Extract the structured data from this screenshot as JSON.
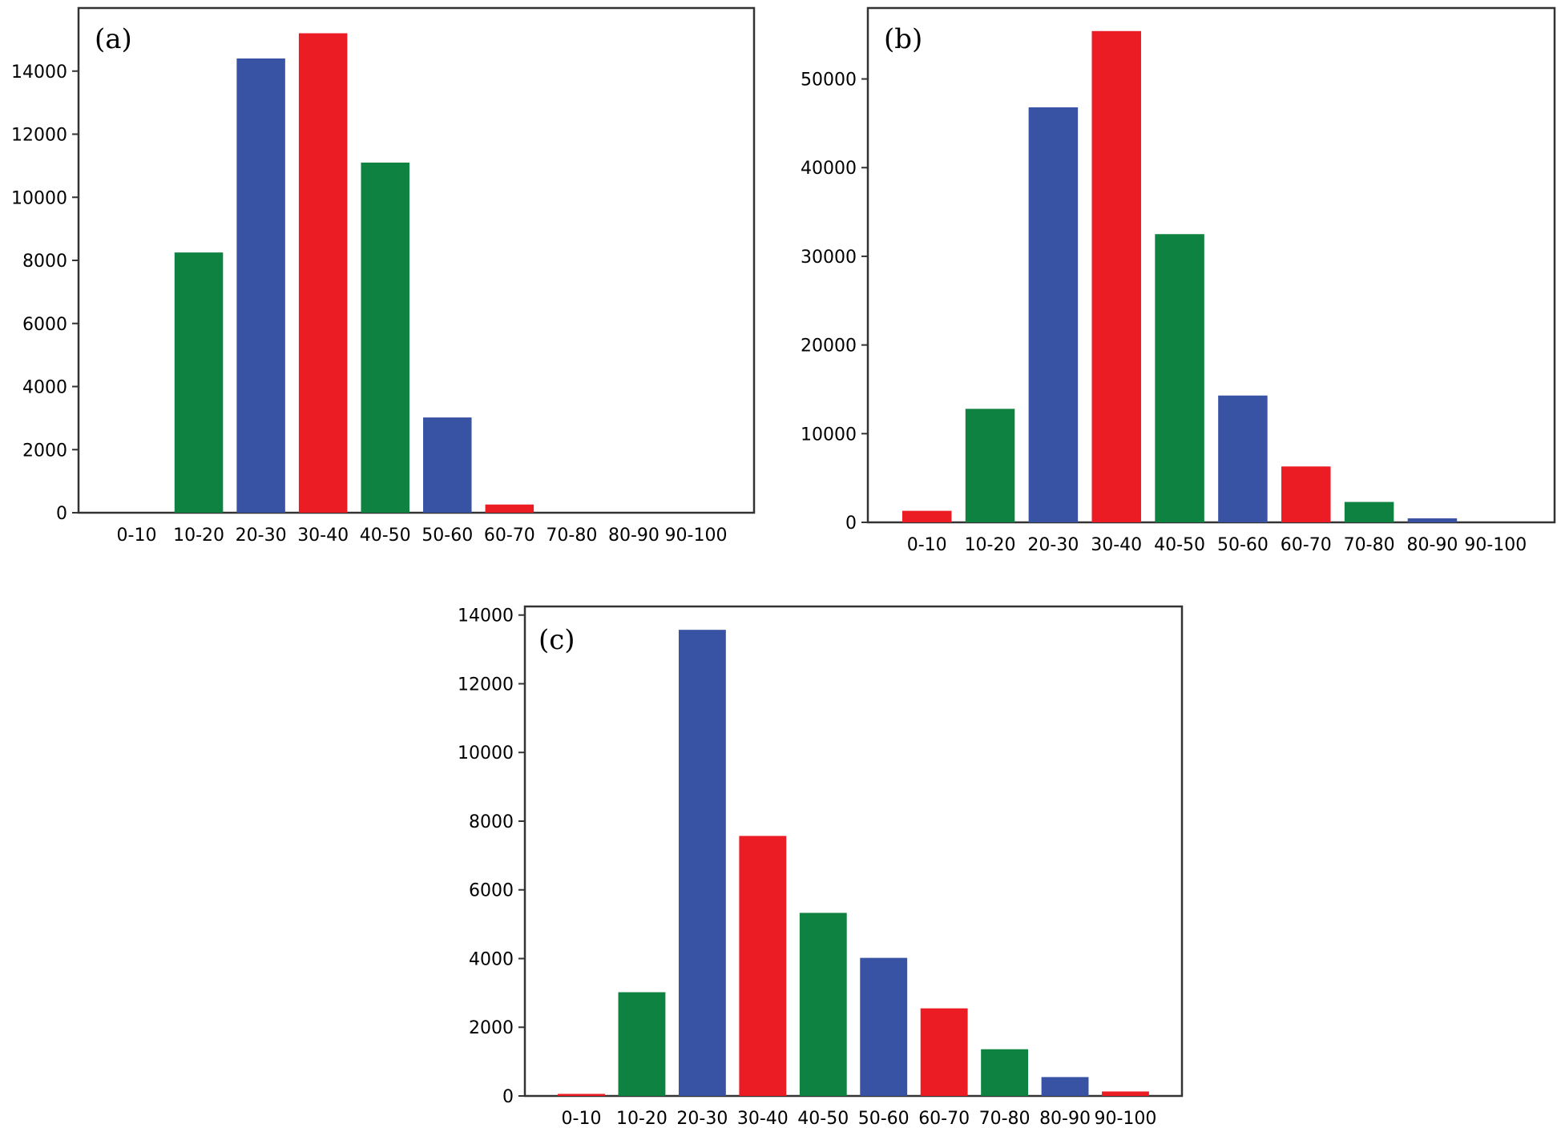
{
  "chart_data": [
    {
      "type": "bar",
      "panel_label": "(a)",
      "categories": [
        "0-10",
        "10-20",
        "20-30",
        "30-40",
        "40-50",
        "50-60",
        "60-70",
        "70-80",
        "80-90",
        "90-100"
      ],
      "values": [
        0,
        8250,
        14400,
        15200,
        11100,
        3020,
        260,
        0,
        0,
        0
      ],
      "yticks": [
        0,
        2000,
        4000,
        6000,
        8000,
        10000,
        12000,
        14000
      ],
      "ylim": [
        0,
        16000
      ],
      "grid": false,
      "colors": [
        "#1a9641",
        "#0e8240",
        "#3953a4",
        "#ec1c24",
        "#0e8240",
        "#3953a4",
        "#ec1c24",
        "#0e8240",
        "#3953a4",
        "#ec1c24"
      ]
    },
    {
      "type": "bar",
      "panel_label": "(b)",
      "categories": [
        "0-10",
        "10-20",
        "20-30",
        "30-40",
        "40-50",
        "50-60",
        "60-70",
        "70-80",
        "80-90",
        "90-100"
      ],
      "values": [
        1300,
        12800,
        46800,
        55400,
        32500,
        14300,
        6300,
        2300,
        450,
        0
      ],
      "yticks": [
        0,
        10000,
        20000,
        30000,
        40000,
        50000
      ],
      "ylim": [
        0,
        58000
      ],
      "grid": false,
      "colors": [
        "#ec1c24",
        "#0e8240",
        "#3953a4",
        "#ec1c24",
        "#0e8240",
        "#3953a4",
        "#ec1c24",
        "#0e8240",
        "#3953a4",
        "#ec1c24"
      ]
    },
    {
      "type": "bar",
      "panel_label": "(c)",
      "categories": [
        "0-10",
        "10-20",
        "20-30",
        "30-40",
        "40-50",
        "50-60",
        "60-70",
        "70-80",
        "80-90",
        "90-100"
      ],
      "values": [
        60,
        3020,
        13570,
        7570,
        5330,
        4020,
        2550,
        1360,
        550,
        130
      ],
      "yticks": [
        0,
        2000,
        4000,
        6000,
        8000,
        10000,
        12000,
        14000
      ],
      "ylim": [
        0,
        14250
      ],
      "grid": false,
      "colors": [
        "#ec1c24",
        "#0e8240",
        "#3953a4",
        "#ec1c24",
        "#0e8240",
        "#3953a4",
        "#ec1c24",
        "#0e8240",
        "#3953a4",
        "#ec1c24"
      ]
    }
  ]
}
